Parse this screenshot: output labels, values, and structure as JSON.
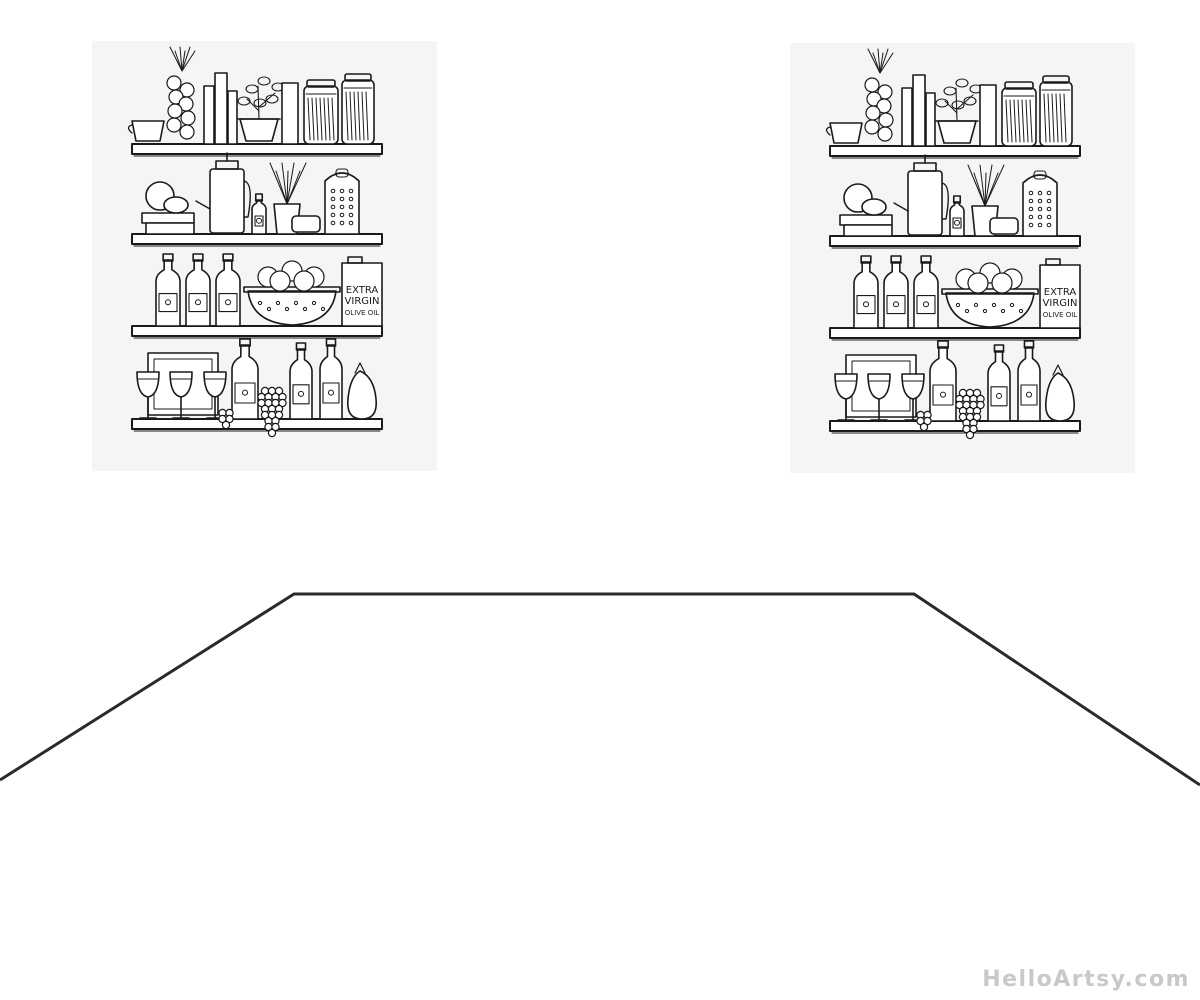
{
  "illustration": {
    "subject": "kitchen-pantry-shelves",
    "copies": 2,
    "oil_can_text": [
      "EXTRA",
      "VIRGIN",
      "OLIVE OIL"
    ]
  },
  "colors": {
    "ink": "#1a1a1a",
    "paper": "#f6f5f6",
    "background": "#ffffff",
    "watermark": "#c9c9c9"
  },
  "watermark": "HelloArtsy.com"
}
